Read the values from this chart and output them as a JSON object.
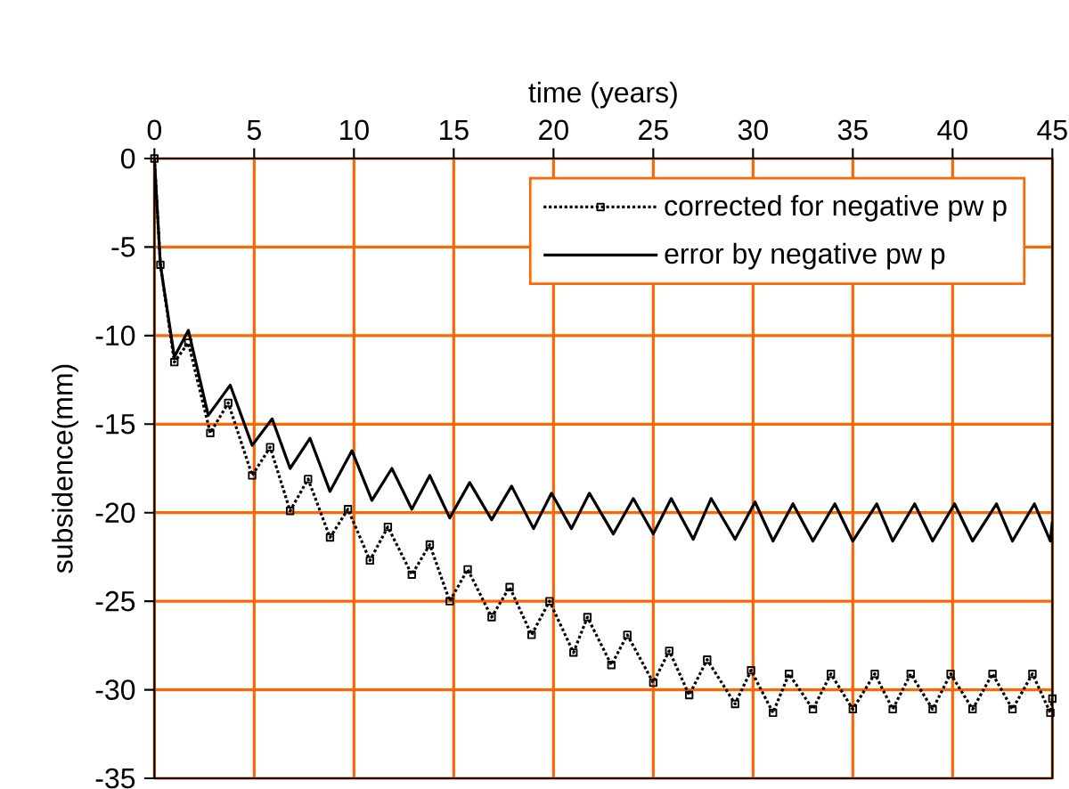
{
  "chart_data": {
    "type": "line",
    "xlabel": "time (years)",
    "ylabel": "subsidence(mm)",
    "xlim": [
      0,
      45
    ],
    "xticks": [
      0,
      5,
      10,
      15,
      20,
      25,
      30,
      35,
      40,
      45
    ],
    "ylim": [
      -35,
      0
    ],
    "yticks": [
      -35,
      -30,
      -25,
      -20,
      -15,
      -10,
      -5,
      0
    ],
    "grid": true,
    "legend": "top right",
    "series": [
      {
        "name": "corrected for negative pw p",
        "color": "#000000",
        "marker": "square",
        "line_style": "dotted",
        "x": [
          0,
          0.3,
          1.0,
          1.7,
          2.8,
          3.7,
          4.9,
          5.8,
          6.8,
          7.7,
          8.8,
          9.7,
          10.8,
          11.7,
          12.9,
          13.8,
          14.8,
          15.7,
          16.9,
          17.8,
          18.9,
          19.8,
          21.0,
          21.7,
          22.9,
          23.7,
          25.0,
          25.8,
          26.8,
          27.7,
          29.1,
          29.9,
          31.0,
          31.8,
          33.0,
          33.9,
          35.0,
          36.1,
          37.0,
          37.9,
          39.0,
          39.9,
          41.0,
          42.0,
          43.0,
          44.0,
          44.9,
          45
        ],
        "values": [
          0,
          -6,
          -11.5,
          -10.4,
          -15.5,
          -13.8,
          -17.9,
          -16.3,
          -19.9,
          -18.1,
          -21.4,
          -19.8,
          -22.7,
          -20.8,
          -23.5,
          -21.8,
          -25.0,
          -23.2,
          -25.9,
          -24.2,
          -26.9,
          -25.0,
          -27.9,
          -25.9,
          -28.6,
          -26.9,
          -29.6,
          -27.8,
          -30.3,
          -28.3,
          -30.8,
          -28.9,
          -31.3,
          -29.1,
          -31.1,
          -29.1,
          -31.1,
          -29.1,
          -31.1,
          -29.1,
          -31.1,
          -29.1,
          -31.1,
          -29.1,
          -31.1,
          -29.1,
          -31.3,
          -30.5
        ]
      },
      {
        "name": "error by negative pw p",
        "color": "#000000",
        "marker": "none",
        "line_style": "solid",
        "x": [
          0,
          0.3,
          1.0,
          1.7,
          2.7,
          3.8,
          4.9,
          5.9,
          6.8,
          7.8,
          8.8,
          9.9,
          10.9,
          11.9,
          12.9,
          13.8,
          14.8,
          15.8,
          16.9,
          17.9,
          19.0,
          19.9,
          20.9,
          21.8,
          23.0,
          24.0,
          25.0,
          25.9,
          27.0,
          27.9,
          29.1,
          30.1,
          31.0,
          32.0,
          33.0,
          34.1,
          35.0,
          36.2,
          37.0,
          38.1,
          39.0,
          40.1,
          41.0,
          42.2,
          43.0,
          44.1,
          44.9,
          45
        ],
        "values": [
          0,
          -6,
          -11.2,
          -9.7,
          -14.5,
          -12.8,
          -16.2,
          -14.7,
          -17.5,
          -15.8,
          -18.8,
          -16.5,
          -19.3,
          -17.5,
          -19.8,
          -17.9,
          -20.3,
          -18.3,
          -20.4,
          -18.5,
          -20.9,
          -18.9,
          -20.9,
          -18.9,
          -21.2,
          -19.2,
          -21.2,
          -19.2,
          -21.5,
          -19.2,
          -21.5,
          -19.4,
          -21.6,
          -19.5,
          -21.6,
          -19.5,
          -21.6,
          -19.5,
          -21.6,
          -19.5,
          -21.6,
          -19.5,
          -21.6,
          -19.5,
          -21.6,
          -19.5,
          -21.6,
          -20.5
        ]
      }
    ]
  }
}
